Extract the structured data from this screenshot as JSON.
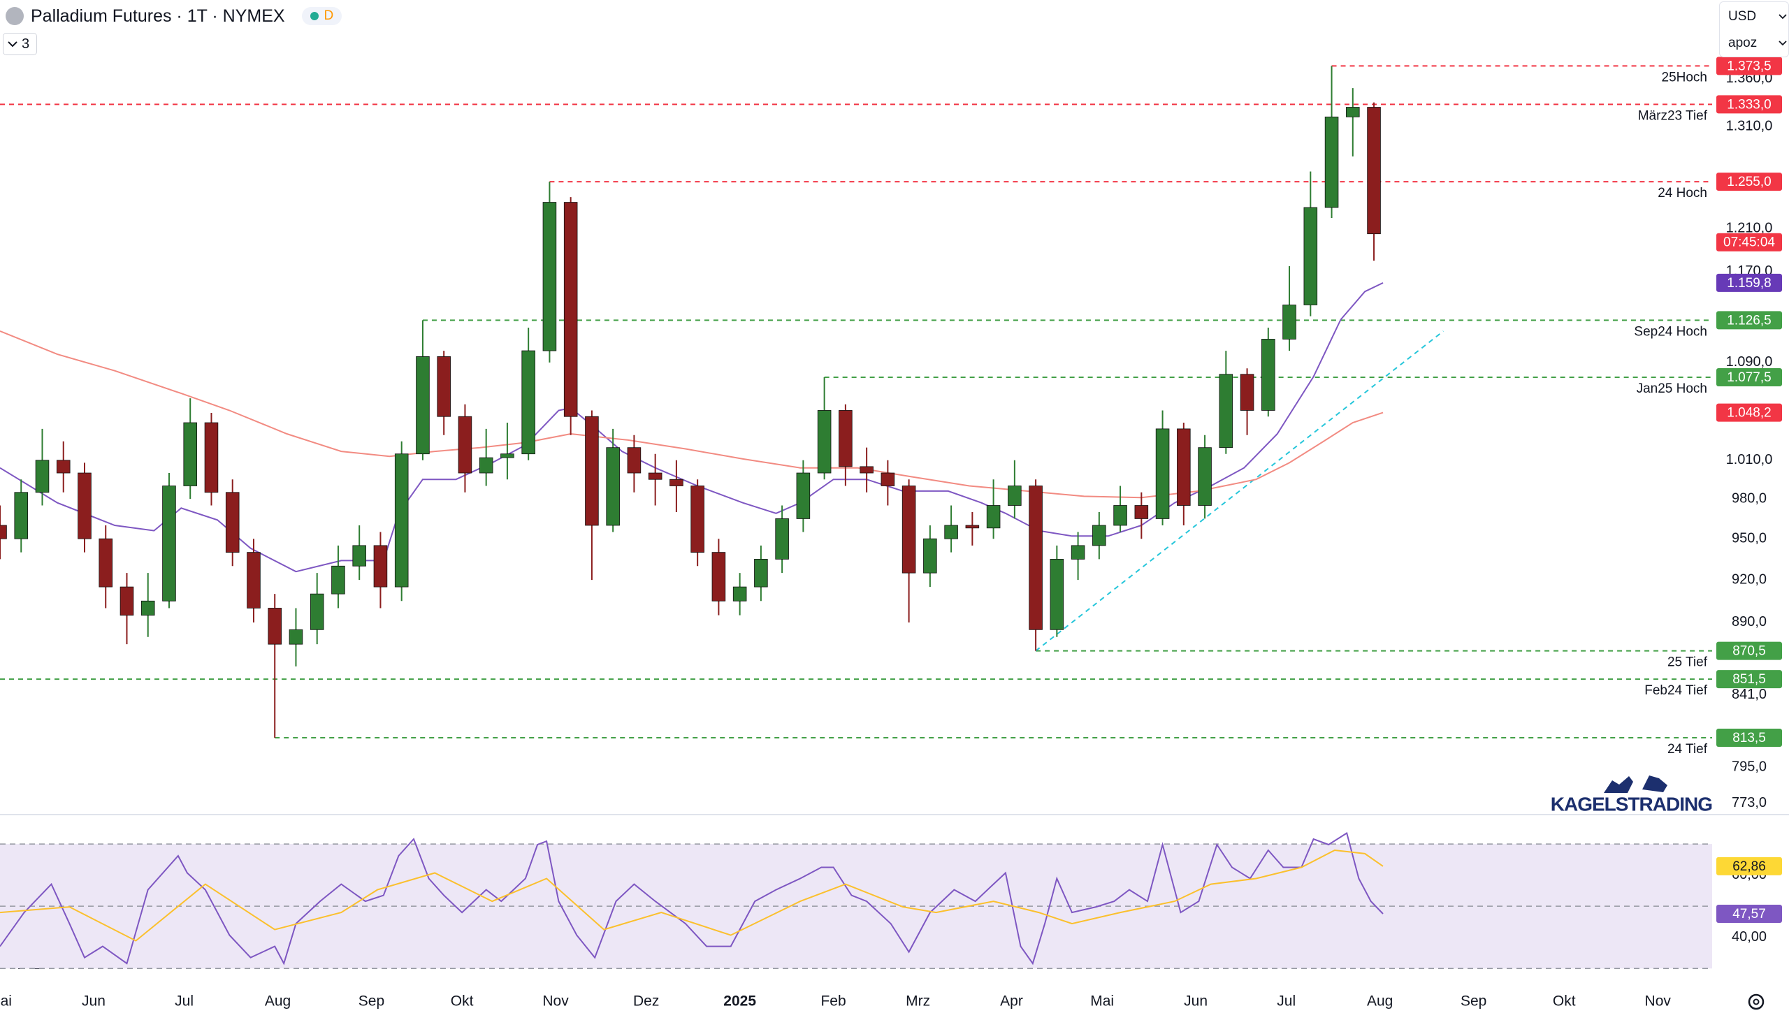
{
  "header": {
    "title": "Palladium Futures · 1T · NYMEX",
    "badge": "D",
    "indicators": "3",
    "currency": "USD",
    "unit": "apoz",
    "watermark": "KAGELSTRADING"
  },
  "chart_data": [
    {
      "type": "candlestick",
      "log_scale": true,
      "up_color": "#2e7d32",
      "down_color": "#8b1e1e",
      "xlim": [
        0,
        567
      ],
      "ylim": [
        767,
        1446
      ],
      "xticks": [
        {
          "value": 0,
          "label": "Mai"
        },
        {
          "value": 31,
          "label": "Jun"
        },
        {
          "value": 61,
          "label": "Jul"
        },
        {
          "value": 92,
          "label": "Aug"
        },
        {
          "value": 123,
          "label": "Sep"
        },
        {
          "value": 153,
          "label": "Okt"
        },
        {
          "value": 184,
          "label": "Nov"
        },
        {
          "value": 214,
          "label": "Dez"
        },
        {
          "value": 245,
          "label": "2025"
        },
        {
          "value": 276,
          "label": "Feb"
        },
        {
          "value": 304,
          "label": "Mrz"
        },
        {
          "value": 335,
          "label": "Apr"
        },
        {
          "value": 365,
          "label": "Mai"
        },
        {
          "value": 396,
          "label": "Jun"
        },
        {
          "value": 426,
          "label": "Jul"
        },
        {
          "value": 457,
          "label": "Aug"
        },
        {
          "value": 488,
          "label": "Sep"
        },
        {
          "value": 518,
          "label": "Okt"
        },
        {
          "value": 549,
          "label": "Nov"
        }
      ],
      "yticks": [
        {
          "value": 1360,
          "label": "1.360,0"
        },
        {
          "value": 1310,
          "label": "1.310,0"
        },
        {
          "value": 1210,
          "label": "1.210,0"
        },
        {
          "value": 1170,
          "label": "1.170,0"
        },
        {
          "value": 1090,
          "label": "1.090,0"
        },
        {
          "value": 1010,
          "label": "1.010,0"
        },
        {
          "value": 980,
          "label": "980,0"
        },
        {
          "value": 950,
          "label": "950,0"
        },
        {
          "value": 920,
          "label": "920,0"
        },
        {
          "value": 890,
          "label": "890,0"
        },
        {
          "value": 841,
          "label": "841,0"
        },
        {
          "value": 795,
          "label": "795,0"
        },
        {
          "value": 773,
          "label": "773,0"
        }
      ],
      "x": [
        0,
        7,
        14,
        21,
        28,
        35,
        42,
        49,
        56,
        63,
        70,
        77,
        84,
        91,
        98,
        105,
        112,
        119,
        126,
        133,
        140,
        147,
        154,
        161,
        168,
        175,
        182,
        189,
        196,
        203,
        210,
        217,
        224,
        231,
        238,
        245,
        252,
        259,
        266,
        273,
        280,
        287,
        294,
        301,
        308,
        315,
        322,
        329,
        336,
        343,
        350,
        357,
        364,
        371,
        378,
        385,
        392,
        399,
        406,
        413,
        420,
        427,
        434,
        441,
        448,
        455
      ],
      "open": [
        960,
        950,
        985,
        1010,
        1000,
        950,
        915,
        895,
        905,
        990,
        1040,
        985,
        940,
        900,
        875,
        885,
        910,
        930,
        945,
        915,
        1015,
        1095,
        1045,
        1000,
        1012,
        1015,
        1100,
        1235,
        1045,
        960,
        1020,
        1000,
        995,
        990,
        940,
        905,
        915,
        935,
        965,
        1000,
        1050,
        1005,
        1000,
        990,
        925,
        950,
        960,
        958,
        975,
        990,
        885,
        935,
        945,
        960,
        975,
        965,
        1035,
        975,
        1020,
        1080,
        1050,
        1110,
        1140,
        1230,
        1320,
        1330
      ],
      "high": [
        975,
        995,
        1035,
        1025,
        1008,
        960,
        925,
        925,
        1000,
        1060,
        1048,
        995,
        950,
        910,
        900,
        925,
        945,
        960,
        955,
        1025,
        1126.5,
        1100,
        1055,
        1035,
        1040,
        1120,
        1255,
        1240,
        1050,
        1035,
        1030,
        1015,
        1010,
        995,
        950,
        925,
        945,
        975,
        1010,
        1077.5,
        1055,
        1020,
        1010,
        995,
        960,
        975,
        970,
        995,
        1010,
        995,
        945,
        955,
        970,
        990,
        985,
        1050,
        1040,
        1030,
        1100,
        1085,
        1120,
        1175,
        1265,
        1373.5,
        1350,
        1335
      ],
      "low": [
        935,
        940,
        975,
        985,
        940,
        900,
        875,
        880,
        900,
        980,
        975,
        930,
        890,
        813.5,
        860,
        875,
        900,
        920,
        900,
        905,
        1010,
        1030,
        985,
        990,
        995,
        1010,
        1090,
        1030,
        920,
        955,
        985,
        975,
        970,
        930,
        895,
        895,
        905,
        925,
        955,
        995,
        990,
        985,
        975,
        890,
        915,
        940,
        945,
        950,
        965,
        870.5,
        880,
        920,
        935,
        955,
        950,
        960,
        960,
        965,
        1015,
        1030,
        1045,
        1100,
        1130,
        1220,
        1280,
        1180
      ],
      "close": [
        950,
        985,
        1010,
        1000,
        950,
        915,
        895,
        905,
        990,
        1040,
        985,
        940,
        900,
        875,
        885,
        910,
        930,
        945,
        915,
        1015,
        1095,
        1045,
        1000,
        1012,
        1015,
        1100,
        1235,
        1045,
        960,
        1020,
        1000,
        995,
        990,
        940,
        905,
        915,
        935,
        965,
        1000,
        1050,
        1005,
        1000,
        990,
        925,
        950,
        960,
        958,
        975,
        990,
        885,
        935,
        945,
        960,
        975,
        965,
        1035,
        975,
        1020,
        1080,
        1050,
        1110,
        1140,
        1230,
        1320,
        1330,
        1205
      ],
      "countdown": "07:45:04",
      "countdown_color": "#f23645",
      "series": [
        {
          "color": "#7e57c2",
          "tag_color": "#673ab7",
          "last_label": "1.159,8",
          "x": [
            0,
            19,
            38,
            51,
            60,
            72,
            83,
            98,
            113,
            127,
            132,
            140,
            151,
            163,
            174,
            185,
            189,
            197,
            206,
            217,
            231,
            246,
            257,
            265,
            276,
            287,
            299,
            314,
            325,
            333,
            344,
            355,
            367,
            378,
            389,
            401,
            412,
            423,
            435,
            444,
            452,
            458
          ],
          "values": [
            1004,
            977,
            960,
            956,
            973,
            964,
            943,
            926,
            934,
            934,
            969,
            995,
            995,
            1008,
            1022,
            1050,
            1052,
            1036,
            1017,
            1004,
            990,
            977,
            969,
            977,
            995,
            995,
            986,
            986,
            977,
            969,
            956,
            952,
            952,
            960,
            977,
            990,
            1004,
            1031,
            1078,
            1127,
            1152,
            1159.8
          ]
        },
        {
          "color": "#f28b82",
          "tag_color": "#f23645",
          "last_label": "1.048,2",
          "x": [
            0,
            19,
            38,
            60,
            76,
            95,
            113,
            129,
            144,
            159,
            174,
            189,
            208,
            227,
            246,
            265,
            284,
            302,
            321,
            340,
            359,
            378,
            397,
            416,
            427,
            439,
            448,
            458
          ],
          "values": [
            1117,
            1097,
            1083,
            1064,
            1050,
            1031,
            1017,
            1013,
            1017,
            1020,
            1024,
            1031,
            1026,
            1019,
            1011,
            1004,
            1004,
            997,
            990,
            986,
            982,
            981,
            986,
            995,
            1008,
            1026,
            1040,
            1048.2
          ]
        }
      ],
      "levels": [
        {
          "name": "25Hoch",
          "value": 1373.5,
          "label": "1.373,5",
          "color": "#f23645",
          "x_start": 441
        },
        {
          "name": "März23 Tief",
          "value": 1333.0,
          "label": "1.333,0",
          "color": "#f23645",
          "x_start": 0
        },
        {
          "name": "24 Hoch",
          "value": 1255.0,
          "label": "1.255,0",
          "color": "#f23645",
          "x_start": 182
        },
        {
          "name": "Sep24 Hoch",
          "value": 1126.5,
          "label": "1.126,5",
          "color": "#43a047",
          "x_start": 140
        },
        {
          "name": "Jan25 Hoch",
          "value": 1077.5,
          "label": "1.077,5",
          "color": "#43a047",
          "x_start": 273
        },
        {
          "name": "25 Tief",
          "value": 870.5,
          "label": "870,5",
          "color": "#43a047",
          "x_start": 343
        },
        {
          "name": "Feb24 Tief",
          "value": 851.5,
          "label": "851,5",
          "color": "#43a047",
          "x_start": 0
        },
        {
          "name": "24 Tief",
          "value": 813.5,
          "label": "813,5",
          "color": "#43a047",
          "x_start": 91
        }
      ],
      "trendline": {
        "color": "#26c6da",
        "x": [
          343,
          478
        ],
        "values": [
          870.5,
          1117
        ]
      }
    },
    {
      "type": "line",
      "xlim": [
        0,
        567
      ],
      "ylim": [
        24,
        79
      ],
      "yticks": [
        {
          "value": 60,
          "label": "60,00"
        },
        {
          "value": 40,
          "label": "40,00"
        }
      ],
      "guide_levels": [
        70,
        50,
        30
      ],
      "band_color": "#ede7f6",
      "series": [
        {
          "color": "#7e57c2",
          "tag_color": "#7e57c2",
          "tag_text_color": "#ffffff",
          "last_label": "47,57",
          "x": [
            0,
            8,
            17,
            23,
            28,
            34,
            42,
            49,
            59,
            62,
            68,
            76,
            83,
            91,
            94,
            98,
            106,
            113,
            121,
            127,
            132,
            137,
            142,
            147,
            153,
            161,
            166,
            174,
            178,
            181,
            185,
            191,
            197,
            204,
            210,
            217,
            227,
            234,
            242,
            250,
            257,
            265,
            272,
            276,
            282,
            287,
            295,
            301,
            302,
            308,
            316,
            323,
            329,
            333,
            338,
            342,
            346,
            350,
            355,
            363,
            369,
            374,
            380,
            385,
            391,
            397,
            403,
            408,
            414,
            420,
            425,
            431,
            435,
            440,
            446,
            450,
            454,
            458
          ],
          "values": [
            37.1,
            48.0,
            57.1,
            44.4,
            33.5,
            37.1,
            31.6,
            55.3,
            66.2,
            60.7,
            55.3,
            40.7,
            33.5,
            37.1,
            31.6,
            44.4,
            51.6,
            57.1,
            51.6,
            53.5,
            66.2,
            71.6,
            58.9,
            53.5,
            48.0,
            55.3,
            51.6,
            58.9,
            69.8,
            70.9,
            51.6,
            40.7,
            33.5,
            51.6,
            57.1,
            51.6,
            44.4,
            37.1,
            37.1,
            51.6,
            55.3,
            58.9,
            62.5,
            62.5,
            53.5,
            51.6,
            44.4,
            35.3,
            37.1,
            48.0,
            55.3,
            51.6,
            57.1,
            60.7,
            37.1,
            31.6,
            44.4,
            58.9,
            48.0,
            49.8,
            51.6,
            55.3,
            51.6,
            69.8,
            48.0,
            51.6,
            69.8,
            62.5,
            58.9,
            68.0,
            62.5,
            62.5,
            71.6,
            69.8,
            73.5,
            58.9,
            51.6,
            47.57
          ]
        },
        {
          "color": "#fbc02d",
          "tag_color": "#fdd835",
          "tag_text_color": "#131722",
          "last_label": "62,86",
          "x": [
            0,
            23,
            45,
            68,
            91,
            113,
            125,
            144,
            163,
            181,
            200,
            219,
            242,
            265,
            280,
            299,
            310,
            329,
            344,
            355,
            371,
            389,
            401,
            416,
            431,
            442,
            452,
            458
          ],
          "values": [
            48.0,
            49.8,
            38.9,
            57.1,
            42.5,
            48.0,
            55.3,
            60.7,
            51.6,
            58.9,
            42.5,
            48.0,
            40.7,
            51.6,
            57.1,
            49.8,
            48.0,
            51.6,
            48.0,
            44.4,
            48.0,
            51.6,
            57.1,
            58.9,
            62.5,
            68.0,
            66.9,
            62.86
          ]
        }
      ]
    }
  ]
}
